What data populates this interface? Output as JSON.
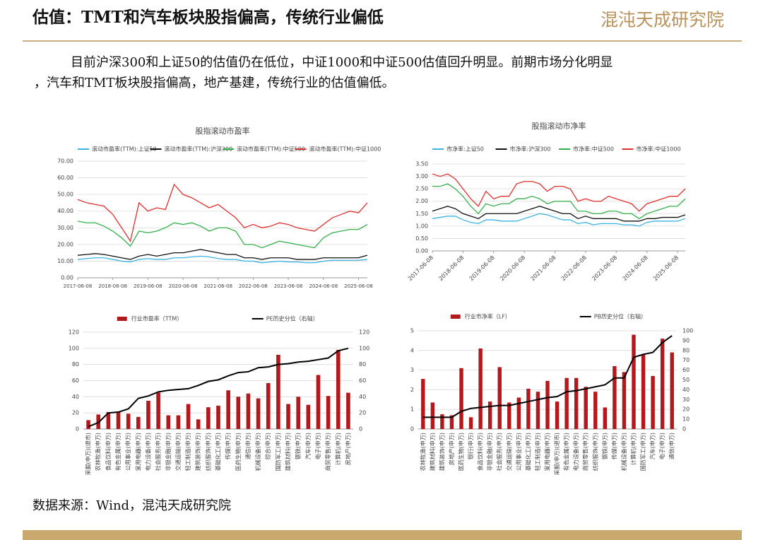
{
  "header": {
    "title": "估值：TMT和汽车板块股指偏高，传统行业偏低",
    "logo": "混沌天成研究院"
  },
  "paragraph": [
    "目前沪深300和上证50的估值仍在低位，中证1000和中证500估值回升明显。前期市场分化明显",
    "，汽车和TMT板块股指偏高，地产基建，传统行业的估值偏低。"
  ],
  "source": "数据来源：Wind，混沌天成研究院",
  "chart_data": [
    {
      "type": "line",
      "title": "股指滚动市盈率",
      "grid": true,
      "x": [
        "2017-06-08",
        "2017-09-08",
        "2017-12-08",
        "2018-03-08",
        "2018-06-08",
        "2018-09-08",
        "2018-12-08",
        "2019-03-08",
        "2019-06-08",
        "2019-09-08",
        "2019-12-08",
        "2020-03-08",
        "2020-06-08",
        "2020-09-08",
        "2020-12-08",
        "2021-03-08",
        "2021-06-08",
        "2021-09-08",
        "2021-12-08",
        "2022-03-08",
        "2022-06-08",
        "2022-09-08",
        "2022-12-08",
        "2023-03-08",
        "2023-06-08",
        "2023-09-08",
        "2023-12-08",
        "2024-03-08",
        "2024-06-08",
        "2024-09-08",
        "2024-12-08",
        "2025-03-08",
        "2025-06-08",
        "2025-09-08"
      ],
      "xlim": [
        "2017-06-08",
        "2025-09-08"
      ],
      "xticks": [
        "2017-06-08",
        "2018-06-08",
        "2019-06-08",
        "2020-06-08",
        "2021-06-08",
        "2022-06-08",
        "2023-06-08",
        "2024-06-08",
        "2025-06-08"
      ],
      "ylim": [
        0,
        70
      ],
      "yticks": [
        {
          "value": 0,
          "label": "0.00"
        },
        {
          "value": 10,
          "label": "10.00"
        },
        {
          "value": 20,
          "label": "20.00"
        },
        {
          "value": 30,
          "label": "30.00"
        },
        {
          "value": 40,
          "label": "40.00"
        },
        {
          "value": 50,
          "label": "50.00"
        },
        {
          "value": 60,
          "label": "60.00"
        },
        {
          "value": 70,
          "label": "70.00"
        }
      ],
      "series": [
        {
          "name": "滚动市盈率(TTM):上证50",
          "color": "#3bb4e3",
          "values": [
            11,
            11.5,
            12,
            12,
            11,
            10,
            9.5,
            11,
            11.5,
            11,
            11,
            12,
            12,
            12.5,
            13,
            12.5,
            11.5,
            11,
            11,
            10,
            10,
            9,
            9.5,
            10,
            9.5,
            9.5,
            9,
            9,
            10,
            10.5,
            10.5,
            10.5,
            10.5,
            11
          ]
        },
        {
          "name": "滚动市盈率(TTM):沪深300",
          "color": "#111111",
          "values": [
            13.5,
            14,
            14.5,
            14,
            13,
            12,
            11,
            13,
            14,
            13,
            14,
            15,
            15,
            16,
            17,
            16,
            15,
            14,
            14,
            12,
            12,
            11,
            12,
            12,
            12,
            11,
            11,
            11,
            12,
            12,
            12,
            12,
            12,
            13.5
          ]
        },
        {
          "name": "滚动市盈率(TTM):中证500",
          "color": "#33b04a",
          "values": [
            34,
            33,
            33,
            31,
            28,
            24,
            19,
            28,
            27,
            28,
            30,
            33,
            32,
            33,
            31,
            28,
            30,
            30,
            28,
            20,
            20,
            18,
            20,
            22,
            21,
            20,
            19,
            18,
            24,
            27,
            28,
            29,
            29,
            32
          ]
        },
        {
          "name": "滚动市盈率(TTM):中证1000",
          "color": "#e0302c",
          "values": [
            47,
            45,
            44,
            43,
            38,
            30,
            22,
            45,
            40,
            42,
            41,
            56,
            50,
            48,
            45,
            42,
            44,
            40,
            36,
            30,
            32,
            30,
            31,
            33,
            32,
            30,
            29,
            28,
            32,
            36,
            38,
            40,
            39,
            45
          ]
        }
      ]
    },
    {
      "type": "line",
      "title": "股指滚动市净率",
      "grid": true,
      "x": [
        "2017-06-08",
        "2017-09-08",
        "2017-12-08",
        "2018-03-08",
        "2018-06-08",
        "2018-09-08",
        "2018-12-08",
        "2019-03-08",
        "2019-06-08",
        "2019-09-08",
        "2019-12-08",
        "2020-03-08",
        "2020-06-08",
        "2020-09-08",
        "2020-12-08",
        "2021-03-08",
        "2021-06-08",
        "2021-09-08",
        "2021-12-08",
        "2022-03-08",
        "2022-06-08",
        "2022-09-08",
        "2022-12-08",
        "2023-03-08",
        "2023-06-08",
        "2023-09-08",
        "2023-12-08",
        "2024-03-08",
        "2024-06-08",
        "2024-09-08",
        "2024-12-08",
        "2025-03-08",
        "2025-06-08",
        "2025-09-08"
      ],
      "xlim": [
        "2017-06-08",
        "2025-09-08"
      ],
      "xticks": [
        "2017-06-08",
        "2018-06-08",
        "2019-06-08",
        "2020-06-08",
        "2021-06-08",
        "2022-06-08",
        "2023-06-08",
        "2024-06-08",
        "2025-06-08"
      ],
      "ylim": [
        0,
        3.5
      ],
      "yticks": [
        {
          "value": 0,
          "label": "0.00"
        },
        {
          "value": 0.5,
          "label": "0.50"
        },
        {
          "value": 1,
          "label": "1.00"
        },
        {
          "value": 1.5,
          "label": "1.50"
        },
        {
          "value": 2,
          "label": "2.00"
        },
        {
          "value": 2.5,
          "label": "2.50"
        },
        {
          "value": 3,
          "label": "3.00"
        },
        {
          "value": 3.5,
          "label": "3.50"
        }
      ],
      "series": [
        {
          "name": "市净率:上证50",
          "color": "#3bb4e3",
          "values": [
            1.3,
            1.35,
            1.4,
            1.4,
            1.25,
            1.15,
            1.1,
            1.25,
            1.25,
            1.2,
            1.2,
            1.2,
            1.3,
            1.4,
            1.5,
            1.45,
            1.35,
            1.25,
            1.25,
            1.1,
            1.15,
            1.05,
            1.1,
            1.1,
            1.1,
            1.05,
            1.05,
            1.0,
            1.15,
            1.2,
            1.2,
            1.2,
            1.2,
            1.3
          ]
        },
        {
          "name": "市净率:沪深300",
          "color": "#111111",
          "values": [
            1.6,
            1.7,
            1.8,
            1.7,
            1.5,
            1.4,
            1.3,
            1.5,
            1.5,
            1.5,
            1.5,
            1.5,
            1.6,
            1.7,
            1.8,
            1.7,
            1.6,
            1.5,
            1.5,
            1.3,
            1.4,
            1.3,
            1.3,
            1.3,
            1.3,
            1.2,
            1.2,
            1.2,
            1.3,
            1.3,
            1.35,
            1.35,
            1.35,
            1.45
          ]
        },
        {
          "name": "市净率:中证500",
          "color": "#33b04a",
          "values": [
            2.6,
            2.6,
            2.7,
            2.5,
            2.2,
            1.8,
            1.5,
            1.9,
            1.8,
            1.9,
            1.9,
            2.1,
            2.1,
            2.2,
            2.1,
            1.9,
            2.0,
            2.0,
            2.0,
            1.6,
            1.6,
            1.5,
            1.5,
            1.6,
            1.6,
            1.5,
            1.5,
            1.3,
            1.5,
            1.6,
            1.7,
            1.8,
            1.8,
            2.1
          ]
        },
        {
          "name": "市净率:中证1000",
          "color": "#e0302c",
          "values": [
            3.1,
            3.0,
            3.1,
            2.9,
            2.5,
            2.1,
            1.8,
            2.4,
            2.1,
            2.2,
            2.2,
            2.7,
            2.8,
            2.8,
            2.7,
            2.4,
            2.6,
            2.6,
            2.5,
            2.0,
            2.1,
            2.0,
            2.0,
            2.2,
            2.1,
            2.0,
            1.9,
            1.6,
            1.9,
            2.0,
            2.1,
            2.2,
            2.2,
            2.5
          ]
        }
      ]
    },
    {
      "type": "combo",
      "grid": true,
      "categories": [
        "采掘(申万)(退市)",
        "农林牧渔(申万)",
        "食品饮料(申万)",
        "有色金属(申万)",
        "公用事业(申万)",
        "家用电器(申万)",
        "电力设备(申万)",
        "社会服务(申万)",
        "非银金融(申万)",
        "交通运输(申万)",
        "轻工制造(申万)",
        "建筑装饰(申万)",
        "纺织服饰(申万)",
        "基础化工(申万)",
        "传媒(申万)",
        "医药生物(申万)",
        "通信(申万)",
        "机械设备(申万)",
        "综合(申万)",
        "国防军工(申万)",
        "建筑材料(申万)",
        "钢铁(申万)",
        "汽车(申万)",
        "电子(申万)",
        "商贸零售(申万)",
        "计算机(申万)",
        "房地产(申万)"
      ],
      "ylim": [
        0,
        120
      ],
      "yticks": [
        0,
        20,
        40,
        60,
        80,
        100,
        120
      ],
      "y2lim": [
        0,
        120
      ],
      "y2ticks": [
        0,
        20,
        40,
        60,
        80,
        100,
        120
      ],
      "series": [
        {
          "name": "行业市盈率（TTM）",
          "color": "#b3191c",
          "values": [
            11,
            18,
            21,
            21,
            19,
            15,
            35,
            45,
            17,
            17,
            31,
            12,
            27,
            29,
            48,
            40,
            44,
            38,
            57,
            92,
            31,
            40,
            30,
            67,
            41,
            98,
            45
          ]
        },
        {
          "name": "PE历史分位（右轴）",
          "color": "#000000",
          "axis": "y2",
          "values": [
            3,
            8,
            20,
            21,
            25,
            38,
            41,
            46,
            48,
            49,
            50,
            54,
            59,
            61,
            66,
            70,
            71,
            76,
            77,
            80,
            81,
            83,
            84,
            86,
            88,
            97,
            100
          ]
        }
      ]
    },
    {
      "type": "combo",
      "grid": true,
      "categories": [
        "农林牧渔(申万)",
        "建筑材料(申万)",
        "建筑装饰(申万)",
        "房地产(申万)",
        "医药生物(申万)",
        "银行(申万)",
        "食品饮料(申万)",
        "非银金融(申万)",
        "社会服务(申万)",
        "交通运输(申万)",
        "公用事业(申万)",
        "基础化工(申万)",
        "轻工制造(申万)",
        "家用电器(申万)",
        "采掘(申万)(退市)",
        "有色金属(申万)",
        "电力设备(申万)",
        "商贸零售(申万)",
        "纺织服饰(申万)",
        "钢铁(申万)",
        "传媒(申万)",
        "机械设备(申万)",
        "计算机(申万)",
        "国防军工(申万)",
        "汽车(申万)",
        "电子(申万)",
        "通信(申万)"
      ],
      "ylim": [
        0,
        5
      ],
      "yticks": [
        0,
        1,
        2,
        3,
        4,
        5
      ],
      "y2lim": [
        0,
        100
      ],
      "y2ticks": [
        0,
        10,
        20,
        30,
        40,
        50,
        60,
        70,
        80,
        90,
        100
      ],
      "series": [
        {
          "name": "行业市净率（LF）",
          "color": "#b3191c",
          "values": [
            2.55,
            1.35,
            0.75,
            0.7,
            3.1,
            0.6,
            4.1,
            1.4,
            3.15,
            1.35,
            1.6,
            2.05,
            1.9,
            2.45,
            1.4,
            2.6,
            2.6,
            2.15,
            1.9,
            1.1,
            3.2,
            2.9,
            4.8,
            3.8,
            2.7,
            4.6,
            3.9
          ]
        },
        {
          "name": "PB历史分位（右轴）",
          "color": "#000000",
          "axis": "y2",
          "values": [
            12,
            12,
            12,
            12,
            18,
            21,
            22,
            23,
            24,
            24,
            26,
            28,
            30,
            32,
            33,
            38,
            39,
            41,
            43,
            45,
            52,
            52,
            73,
            76,
            78,
            88,
            95
          ]
        }
      ]
    }
  ]
}
